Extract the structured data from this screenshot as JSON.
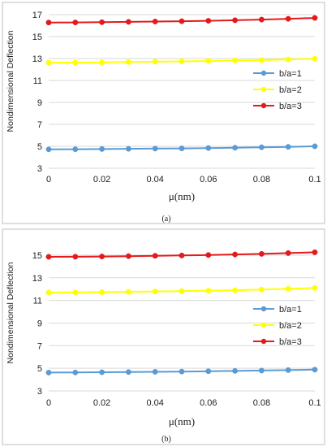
{
  "chart_data": [
    {
      "type": "line",
      "panel_label": "(a)",
      "ylabel": "Nondimensional Deflection",
      "xlabel": "μ(nm)",
      "xlim": [
        0,
        0.1
      ],
      "ylim": [
        3,
        17
      ],
      "xticks": [
        "0",
        "0.02",
        "0.04",
        "0.06",
        "0.08",
        "0.1"
      ],
      "yticks": [
        "3",
        "5",
        "7",
        "9",
        "11",
        "13",
        "15",
        "17"
      ],
      "grid": "horizontal",
      "legend_position": "right",
      "x": [
        0,
        0.01,
        0.02,
        0.03,
        0.04,
        0.05,
        0.06,
        0.07,
        0.08,
        0.09,
        0.1
      ],
      "series": [
        {
          "name": "b/a=1",
          "color": "#5b9bd5",
          "values": [
            4.72,
            4.73,
            4.75,
            4.77,
            4.79,
            4.81,
            4.84,
            4.87,
            4.91,
            4.95,
            5.0
          ]
        },
        {
          "name": "b/a=2",
          "color": "#ffff00",
          "values": [
            12.62,
            12.63,
            12.65,
            12.68,
            12.71,
            12.74,
            12.78,
            12.82,
            12.86,
            12.92,
            12.98
          ]
        },
        {
          "name": "b/a=3",
          "color": "#e31a1c",
          "values": [
            16.28,
            16.29,
            16.31,
            16.34,
            16.37,
            16.4,
            16.44,
            16.49,
            16.55,
            16.62,
            16.7
          ]
        }
      ]
    },
    {
      "type": "line",
      "panel_label": "(b)",
      "ylabel": "Nondimensional Deflection",
      "xlabel": "μ(nm)",
      "xlim": [
        0,
        0.1
      ],
      "ylim": [
        3,
        16
      ],
      "xticks": [
        "0",
        "0.02",
        "0.04",
        "0.06",
        "0.08",
        "0.1"
      ],
      "yticks": [
        "3",
        "5",
        "7",
        "9",
        "11",
        "13",
        "15"
      ],
      "grid": "horizontal",
      "legend_position": "right",
      "x": [
        0,
        0.01,
        0.02,
        0.03,
        0.04,
        0.05,
        0.06,
        0.07,
        0.08,
        0.09,
        0.1
      ],
      "series": [
        {
          "name": "b/a=1",
          "color": "#5b9bd5",
          "values": [
            4.62,
            4.63,
            4.65,
            4.67,
            4.69,
            4.71,
            4.74,
            4.77,
            4.8,
            4.84,
            4.88
          ]
        },
        {
          "name": "b/a=2",
          "color": "#ffff00",
          "values": [
            11.7,
            11.71,
            11.73,
            11.76,
            11.79,
            11.82,
            11.86,
            11.9,
            11.96,
            12.02,
            12.1
          ]
        },
        {
          "name": "b/a=3",
          "color": "#e31a1c",
          "values": [
            14.85,
            14.86,
            14.88,
            14.91,
            14.94,
            14.97,
            15.01,
            15.06,
            15.11,
            15.18,
            15.25
          ]
        }
      ]
    }
  ]
}
